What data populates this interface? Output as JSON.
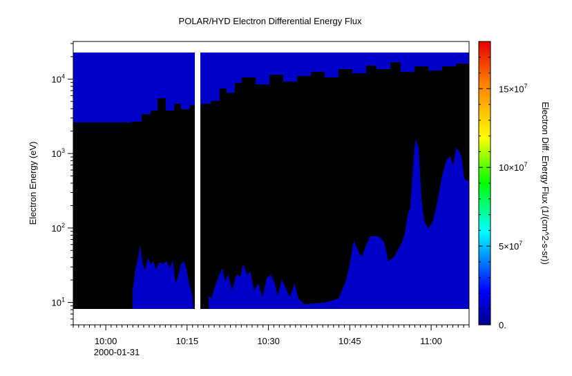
{
  "chart_data": {
    "type": "heatmap",
    "title": "POLAR/HYD  Electron Differential Energy Flux",
    "ylabel": "Electron Energy (eV)",
    "y_scale": "log",
    "ylim": [
      5,
      32000
    ],
    "y_ticks": [
      {
        "value": 10,
        "base": "10",
        "exp": "1"
      },
      {
        "value": 100,
        "base": "10",
        "exp": "2"
      },
      {
        "value": 1000,
        "base": "10",
        "exp": "3"
      },
      {
        "value": 10000,
        "base": "10",
        "exp": "4"
      }
    ],
    "x_ticks": [
      "10:00",
      "10:15",
      "10:30",
      "10:45",
      "11:00"
    ],
    "x_date_label": "2000-01-31",
    "xlim": [
      "09:54",
      "11:07"
    ],
    "data_gap": [
      "10:16:20",
      "10:17:00"
    ],
    "colorbar": {
      "label": "Electron Diff. Energy Flux (1/(cm^2-s-sr))",
      "range": [
        0,
        180000000
      ],
      "ticks": [
        {
          "value": 0,
          "label": "0."
        },
        {
          "value": 50000000,
          "base": "5×10",
          "exp": "7"
        },
        {
          "value": 100000000,
          "base": "10×10",
          "exp": "7"
        },
        {
          "value": 150000000,
          "base": "15×10",
          "exp": "7"
        }
      ],
      "colormap": [
        "#00008c",
        "#0000ff",
        "#00ffff",
        "#00ff00",
        "#ffff00",
        "#ff0000",
        "#e60000"
      ]
    },
    "energy_range_ev": [
      8,
      28000
    ],
    "colors": {
      "fill": "#000000",
      "low_flux": "#0000c8",
      "gap": "#ffffff"
    }
  }
}
